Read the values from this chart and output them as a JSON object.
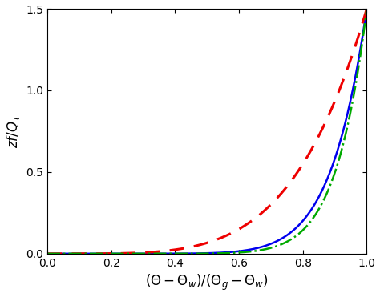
{
  "title": "",
  "xlabel": "$(\\Theta - \\Theta_w)/(\\Theta_g - \\Theta_w)$",
  "ylabel": "$zf/Q_{\\tau}$",
  "xlim": [
    0,
    1.0
  ],
  "ylim": [
    0,
    1.5
  ],
  "xticks": [
    0,
    0.2,
    0.4,
    0.6,
    0.8,
    1.0
  ],
  "yticks": [
    0,
    0.5,
    1.0,
    1.5
  ],
  "background_color": "#ffffff",
  "curves": [
    {
      "label": "blue_solid",
      "color": "#0000ee",
      "linestyle": "solid",
      "linewidth": 1.8,
      "power": 9.0
    },
    {
      "label": "red_dashed",
      "color": "#ee0000",
      "linestyle": "dashed",
      "linewidth": 2.2,
      "power": 4.5
    },
    {
      "label": "green_dashdot",
      "color": "#00aa00",
      "linestyle": "dashdot",
      "linewidth": 1.8,
      "power": 10.5
    }
  ]
}
